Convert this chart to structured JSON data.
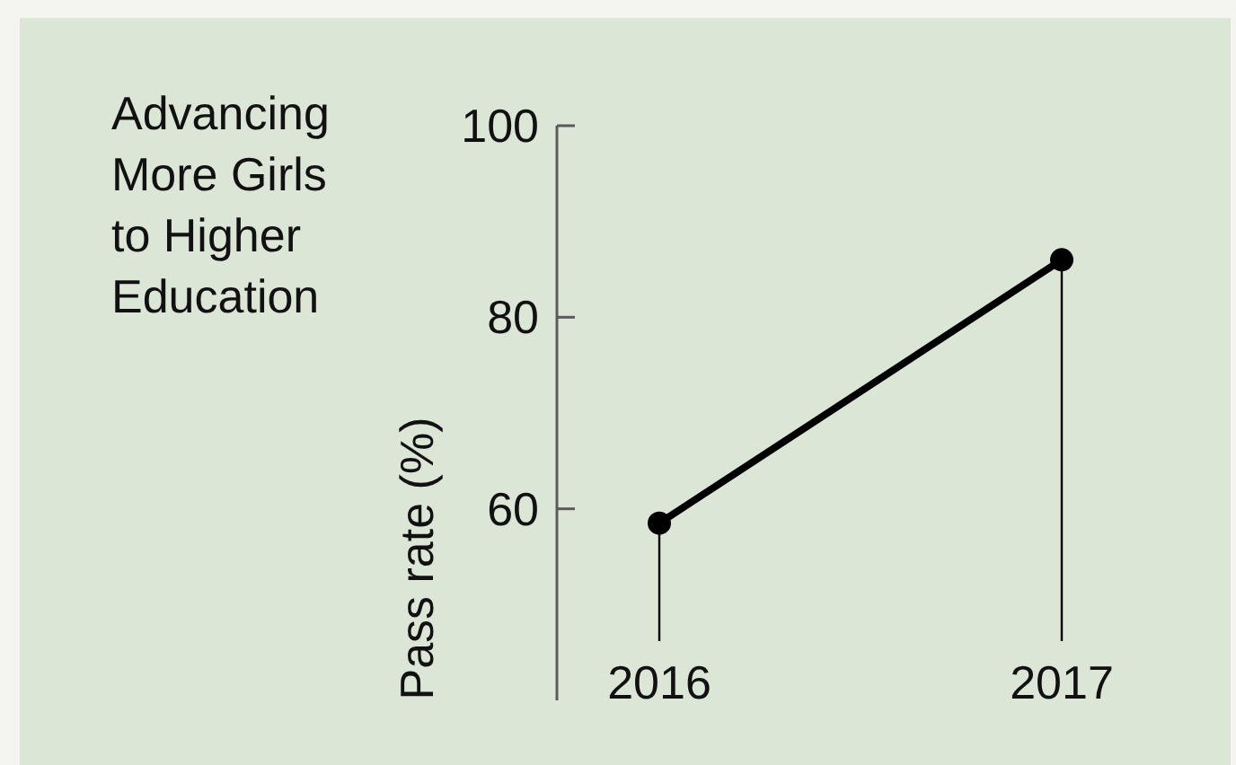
{
  "chart_data": {
    "type": "line",
    "title": "Advancing More Girls to Higher Education",
    "ylabel": "Pass rate (%)",
    "categories": [
      "2016",
      "2017"
    ],
    "series": [
      {
        "color": "#000000",
        "values": [
          58.5,
          86
        ]
      }
    ],
    "ylim": [
      40,
      100
    ],
    "yticks": [
      60,
      80,
      100
    ],
    "marker": "circle"
  }
}
